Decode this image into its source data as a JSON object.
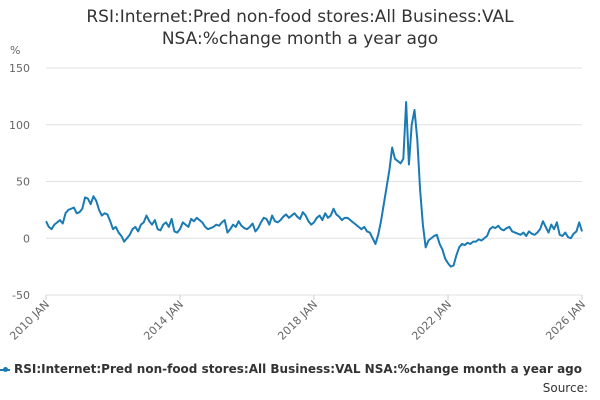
{
  "chart_data": {
    "type": "line",
    "title": "RSI:Internet:Pred non-food stores:All Business:VAL NSA:%change month a year ago",
    "y_label": "%",
    "source": "Source:",
    "x": [
      "2010-01",
      "2010-02",
      "2010-03",
      "2010-04",
      "2010-05",
      "2010-06",
      "2010-07",
      "2010-08",
      "2010-09",
      "2010-10",
      "2010-11",
      "2010-12",
      "2011-01",
      "2011-02",
      "2011-03",
      "2011-04",
      "2011-05",
      "2011-06",
      "2011-07",
      "2011-08",
      "2011-09",
      "2011-10",
      "2011-11",
      "2011-12",
      "2012-01",
      "2012-02",
      "2012-03",
      "2012-04",
      "2012-05",
      "2012-06",
      "2012-07",
      "2012-08",
      "2012-09",
      "2012-10",
      "2012-11",
      "2012-12",
      "2013-01",
      "2013-02",
      "2013-03",
      "2013-04",
      "2013-05",
      "2013-06",
      "2013-07",
      "2013-08",
      "2013-09",
      "2013-10",
      "2013-11",
      "2013-12",
      "2014-01",
      "2014-02",
      "2014-03",
      "2014-04",
      "2014-05",
      "2014-06",
      "2014-07",
      "2014-08",
      "2014-09",
      "2014-10",
      "2014-11",
      "2014-12",
      "2015-01",
      "2015-02",
      "2015-03",
      "2015-04",
      "2015-05",
      "2015-06",
      "2015-07",
      "2015-08",
      "2015-09",
      "2015-10",
      "2015-11",
      "2015-12",
      "2016-01",
      "2016-02",
      "2016-03",
      "2016-04",
      "2016-05",
      "2016-06",
      "2016-07",
      "2016-08",
      "2016-09",
      "2016-10",
      "2016-11",
      "2016-12",
      "2017-01",
      "2017-02",
      "2017-03",
      "2017-04",
      "2017-05",
      "2017-06",
      "2017-07",
      "2017-08",
      "2017-09",
      "2017-10",
      "2017-11",
      "2017-12",
      "2018-01",
      "2018-02",
      "2018-03",
      "2018-04",
      "2018-05",
      "2018-06",
      "2018-07",
      "2018-08",
      "2018-09",
      "2018-10",
      "2018-11",
      "2018-12",
      "2019-01",
      "2019-02",
      "2019-03",
      "2019-04",
      "2019-05",
      "2019-06",
      "2019-07",
      "2019-08",
      "2019-09",
      "2019-10",
      "2019-11",
      "2019-12",
      "2020-01",
      "2020-02",
      "2020-03",
      "2020-04",
      "2020-05",
      "2020-06",
      "2020-07",
      "2020-08",
      "2020-09",
      "2020-10",
      "2020-11",
      "2020-12",
      "2021-01",
      "2021-02",
      "2021-03",
      "2021-04",
      "2021-05",
      "2021-06",
      "2021-07",
      "2021-08",
      "2021-09",
      "2021-10",
      "2021-11",
      "2021-12",
      "2022-01",
      "2022-02",
      "2022-03",
      "2022-04",
      "2022-05",
      "2022-06",
      "2022-07",
      "2022-08",
      "2022-09",
      "2022-10",
      "2022-11",
      "2022-12",
      "2023-01",
      "2023-02",
      "2023-03",
      "2023-04",
      "2023-05",
      "2023-06",
      "2023-07",
      "2023-08",
      "2023-09",
      "2023-10",
      "2023-11",
      "2023-12",
      "2024-01",
      "2024-02",
      "2024-03",
      "2024-04",
      "2024-05",
      "2024-06",
      "2024-07",
      "2024-08",
      "2024-09",
      "2024-10",
      "2024-11",
      "2024-12",
      "2025-01",
      "2025-02",
      "2025-03",
      "2025-04",
      "2025-05",
      "2025-06",
      "2025-07",
      "2025-08",
      "2025-09",
      "2025-10",
      "2025-11",
      "2025-12",
      "2026-01"
    ],
    "series": [
      {
        "name": "RSI:Internet:Pred non-food stores:All Business:VAL NSA:%change month a year ago",
        "color": "#1a7ab4",
        "values": [
          15,
          10,
          8,
          12,
          14,
          16,
          13,
          22,
          25,
          26,
          27,
          22,
          23,
          26,
          36,
          35,
          30,
          37,
          33,
          25,
          20,
          22,
          21,
          15,
          8,
          10,
          5,
          2,
          -3,
          0,
          3,
          8,
          10,
          6,
          12,
          14,
          20,
          15,
          12,
          16,
          8,
          7,
          12,
          14,
          10,
          17,
          6,
          5,
          8,
          14,
          12,
          10,
          17,
          15,
          18,
          16,
          14,
          10,
          8,
          9,
          10,
          12,
          11,
          14,
          16,
          5,
          8,
          12,
          10,
          15,
          11,
          9,
          8,
          10,
          13,
          6,
          9,
          14,
          18,
          17,
          12,
          20,
          15,
          14,
          16,
          19,
          21,
          18,
          20,
          22,
          19,
          17,
          23,
          20,
          15,
          12,
          14,
          18,
          20,
          16,
          22,
          18,
          20,
          26,
          21,
          19,
          16,
          18,
          18,
          16,
          14,
          12,
          10,
          8,
          10,
          6,
          5,
          0,
          -5,
          3,
          15,
          30,
          45,
          60,
          80,
          70,
          68,
          66,
          70,
          120,
          65,
          100,
          113,
          87,
          43,
          12,
          -8,
          -2,
          0,
          2,
          3,
          -5,
          -10,
          -18,
          -22,
          -25,
          -24,
          -15,
          -8,
          -5,
          -6,
          -4,
          -5,
          -3,
          -3,
          -1,
          -2,
          0,
          2,
          8,
          10,
          9,
          11,
          8,
          7,
          9,
          10,
          6,
          5,
          4,
          3,
          5,
          2,
          6,
          4,
          3,
          5,
          8,
          15,
          10,
          5,
          12,
          8,
          14,
          3,
          2,
          5,
          1,
          0,
          4,
          6,
          14,
          6
        ]
      }
    ],
    "ylim": [
      -50,
      150
    ],
    "yticks": [
      -50,
      0,
      50,
      100,
      150
    ],
    "xticks": [
      {
        "value": "2010-01",
        "label": "2010 JAN"
      },
      {
        "value": "2014-01",
        "label": "2014 JAN"
      },
      {
        "value": "2018-01",
        "label": "2018 JAN"
      },
      {
        "value": "2022-01",
        "label": "2022 JAN"
      },
      {
        "value": "2026-01",
        "label": "2026 JAN"
      }
    ],
    "grid": true
  }
}
